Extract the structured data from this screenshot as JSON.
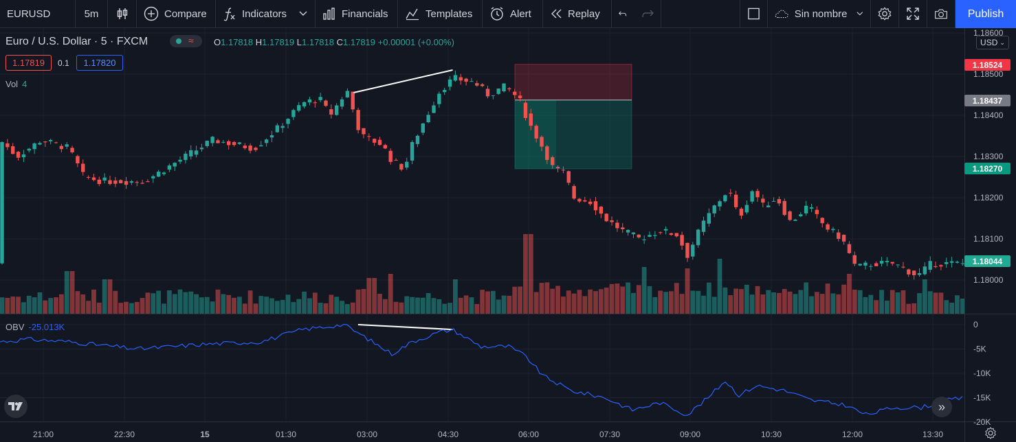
{
  "toolbar": {
    "symbol": "EURUSD",
    "interval": "5m",
    "compare": "Compare",
    "indicators": "Indicators",
    "financials": "Financials",
    "templates": "Templates",
    "alert": "Alert",
    "replay": "Replay",
    "layout_name": "Sin nombre",
    "publish": "Publish"
  },
  "legend": {
    "title": "Euro / U.S. Dollar · 5 · FXCM",
    "open_label": "O",
    "open": "1.17818",
    "high_label": "H",
    "high": "1.17819",
    "low_label": "L",
    "low": "1.17818",
    "close_label": "C",
    "close": "1.17819",
    "change": "+0.00001 (+0.00%)",
    "bid": "1.17819",
    "spread": "0.1",
    "ask": "1.17820"
  },
  "volume_indicator": {
    "label": "Vol",
    "value": "4"
  },
  "obv_indicator": {
    "label": "OBV",
    "value": "-25.013K"
  },
  "currency": "USD",
  "price_axis": {
    "labels": [
      "1.18600",
      "1.18500",
      "1.18400",
      "1.18300",
      "1.18200",
      "1.18100",
      "1.18000"
    ],
    "tag_stop": "1.18524",
    "tag_entry": "1.18437",
    "tag_target": "1.18270",
    "tag_last": "1.18044"
  },
  "obv_axis": {
    "labels": [
      "0",
      "-5K",
      "-10K",
      "-15K",
      "-20K"
    ]
  },
  "time_axis": {
    "labels": [
      "21:00",
      "22:30",
      "15",
      "01:30",
      "03:00",
      "04:30",
      "06:00",
      "07:30",
      "09:00",
      "10:30",
      "12:00",
      "13:30"
    ]
  },
  "colors": {
    "up": "#26a69a",
    "down": "#ef5350",
    "obv": "#2962ff",
    "bg": "#131722"
  },
  "chart_data": {
    "type": "candlestick",
    "price_range": [
      1.1795,
      1.1862
    ],
    "obv_range": [
      -20000,
      1000
    ],
    "candle_anchors": [
      [
        0,
        1.1834
      ],
      [
        25,
        1.183
      ],
      [
        60,
        1.1834
      ],
      [
        100,
        1.1832
      ],
      [
        122,
        1.1825
      ],
      [
        150,
        1.1824
      ],
      [
        210,
        1.1824
      ],
      [
        260,
        1.1829
      ],
      [
        310,
        1.1834
      ],
      [
        370,
        1.1832
      ],
      [
        405,
        1.1837
      ],
      [
        440,
        1.1843
      ],
      [
        465,
        1.1844
      ],
      [
        480,
        1.184
      ],
      [
        505,
        1.1846
      ],
      [
        525,
        1.1835
      ],
      [
        555,
        1.1833
      ],
      [
        570,
        1.1829
      ],
      [
        588,
        1.1827
      ],
      [
        600,
        1.1833
      ],
      [
        615,
        1.1838
      ],
      [
        640,
        1.1846
      ],
      [
        660,
        1.1849
      ],
      [
        690,
        1.1848
      ],
      [
        710,
        1.1845
      ],
      [
        735,
        1.1847
      ],
      [
        755,
        1.1844
      ],
      [
        770,
        1.1838
      ],
      [
        790,
        1.1832
      ],
      [
        805,
        1.1827
      ],
      [
        820,
        1.1826
      ],
      [
        835,
        1.182
      ],
      [
        860,
        1.1819
      ],
      [
        880,
        1.1815
      ],
      [
        905,
        1.1812
      ],
      [
        930,
        1.181
      ],
      [
        960,
        1.1812
      ],
      [
        985,
        1.1811
      ],
      [
        1000,
        1.1806
      ],
      [
        1020,
        1.1813
      ],
      [
        1040,
        1.1818
      ],
      [
        1060,
        1.1822
      ],
      [
        1075,
        1.1815
      ],
      [
        1095,
        1.1822
      ],
      [
        1110,
        1.1818
      ],
      [
        1130,
        1.182
      ],
      [
        1150,
        1.1814
      ],
      [
        1175,
        1.1818
      ],
      [
        1200,
        1.1813
      ],
      [
        1225,
        1.181
      ],
      [
        1245,
        1.1803
      ],
      [
        1270,
        1.1804
      ],
      [
        1300,
        1.1804
      ],
      [
        1335,
        1.1801
      ],
      [
        1355,
        1.1804
      ],
      [
        1400,
        1.1804
      ]
    ],
    "obv_anchors": [
      [
        0,
        -3500
      ],
      [
        40,
        -3000
      ],
      [
        100,
        -3500
      ],
      [
        200,
        -5000
      ],
      [
        300,
        -4000
      ],
      [
        380,
        -3500
      ],
      [
        440,
        -1000
      ],
      [
        500,
        0
      ],
      [
        530,
        -2500
      ],
      [
        570,
        -6000
      ],
      [
        600,
        -3500
      ],
      [
        640,
        -1500
      ],
      [
        658,
        -1000
      ],
      [
        700,
        -4500
      ],
      [
        740,
        -4500
      ],
      [
        765,
        -6500
      ],
      [
        790,
        -10500
      ],
      [
        830,
        -13500
      ],
      [
        880,
        -15000
      ],
      [
        920,
        -17500
      ],
      [
        960,
        -16000
      ],
      [
        1000,
        -18500
      ],
      [
        1030,
        -15000
      ],
      [
        1055,
        -11500
      ],
      [
        1075,
        -14500
      ],
      [
        1100,
        -12500
      ],
      [
        1140,
        -13500
      ],
      [
        1180,
        -15500
      ],
      [
        1230,
        -16500
      ],
      [
        1260,
        -18500
      ],
      [
        1300,
        -17000
      ],
      [
        1340,
        -17000
      ],
      [
        1380,
        -15500
      ],
      [
        1403,
        -15000
      ]
    ],
    "position": {
      "type": "short",
      "entry": 1.18437,
      "stop": 1.18524,
      "target": 1.1827
    },
    "trendlines": [
      {
        "pane": "price",
        "from": [
          "02:45",
          1.18455
        ],
        "to": [
          "04:35",
          1.1851
        ]
      },
      {
        "pane": "obv",
        "from": [
          "02:50",
          0
        ],
        "to": [
          "04:35",
          -1000
        ]
      }
    ]
  }
}
